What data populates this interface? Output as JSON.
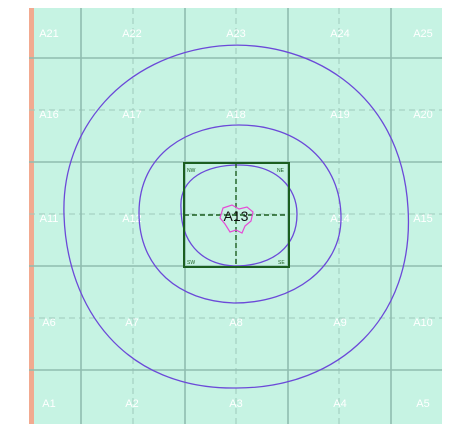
{
  "grid": {
    "cells": [
      [
        "A21",
        "A22",
        "A23",
        "A24",
        "A25"
      ],
      [
        "A16",
        "A17",
        "A18",
        "A19",
        "A20"
      ],
      [
        "A11",
        "A12",
        "A13",
        "A14",
        "A15"
      ],
      [
        "A6",
        "A7",
        "A8",
        "A9",
        "A10"
      ],
      [
        "A1",
        "A2",
        "A3",
        "A4",
        "A5"
      ]
    ],
    "highlighted_cell": "A13"
  },
  "focus_box": {
    "corners": {
      "nw": "NW",
      "ne": "NE",
      "sw": "SW",
      "se": "SE"
    }
  },
  "colors": {
    "background": "#c6f3e3",
    "grid_line": "#8fbcb0",
    "minor_line": "#9dc9bb",
    "left_strip": "#f2aa90",
    "contour": "#6b49d8",
    "box": "#1b5e20",
    "center_shape": "#e64bd6"
  }
}
